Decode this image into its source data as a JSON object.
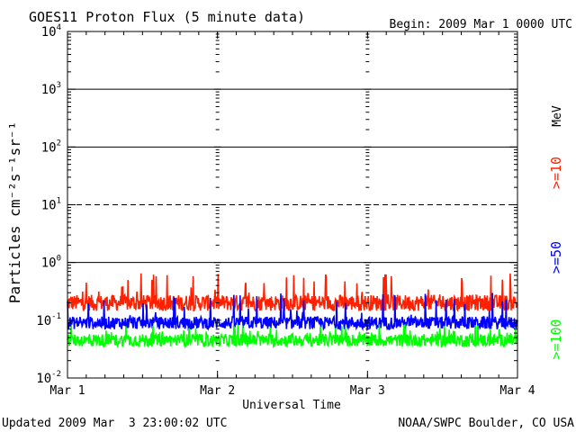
{
  "chart_data": {
    "type": "line",
    "title": "GOES11 Proton Flux (5 minute data)",
    "begin_label": "Begin: 2009 Mar 1 0000 UTC",
    "ylabel": "Particles cm⁻²s⁻¹sr⁻¹",
    "xlabel": "Universal Time",
    "unit_label": "MeV",
    "yscale": "log",
    "ylim": [
      0.01,
      10000
    ],
    "y_ticks": [
      {
        "base": "10",
        "exp": "4"
      },
      {
        "base": "10",
        "exp": "3"
      },
      {
        "base": "10",
        "exp": "2"
      },
      {
        "base": "10",
        "exp": "1"
      },
      {
        "base": "10",
        "exp": "0"
      },
      {
        "base": "10",
        "exp": "-1"
      },
      {
        "base": "10",
        "exp": "-2"
      }
    ],
    "y_tick_values": [
      10000,
      1000,
      100,
      10,
      1,
      0.1,
      0.01
    ],
    "x_ticks": [
      "Mar 1",
      "Mar 2",
      "Mar 3",
      "Mar 4"
    ],
    "xlim_days": [
      0,
      3
    ],
    "threshold_lines": [
      {
        "value": 1000,
        "style": "solid"
      },
      {
        "value": 100,
        "style": "solid"
      },
      {
        "value": 10,
        "style": "dashed"
      },
      {
        "value": 1,
        "style": "solid"
      }
    ],
    "series": [
      {
        "name": ">=10",
        "color": "#ff2000",
        "baseline": 0.2,
        "noise_decades": 0.28,
        "spike_max": 0.65
      },
      {
        "name": ">=50",
        "color": "#0000ff",
        "baseline": 0.09,
        "noise_decades": 0.22,
        "spike_max": 0.3
      },
      {
        "name": ">=100",
        "color": "#00ff00",
        "baseline": 0.045,
        "noise_decades": 0.22,
        "spike_max": 0.085
      }
    ],
    "grid": false
  },
  "footer": {
    "updated": "Updated 2009 Mar  3 23:00:02 UTC",
    "source": "NOAA/SWPC Boulder, CO USA"
  }
}
